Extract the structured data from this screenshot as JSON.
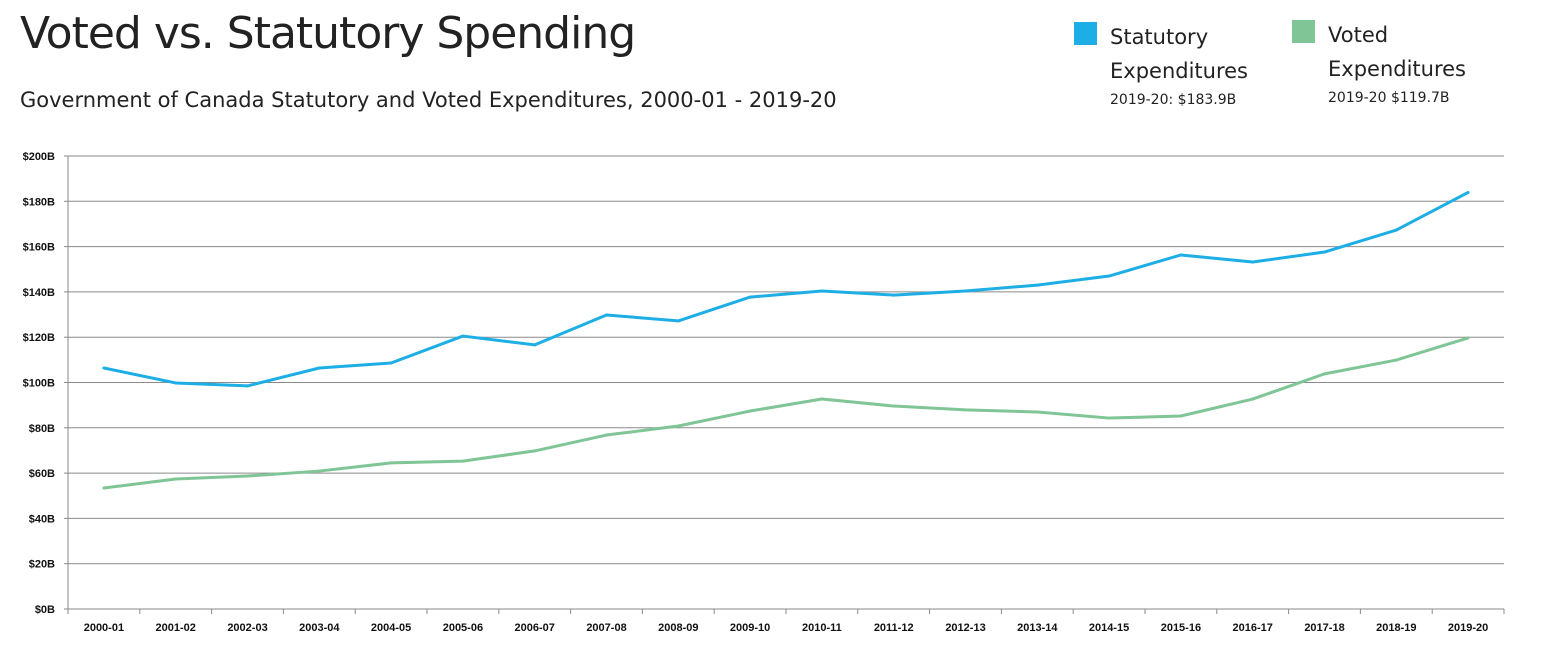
{
  "chart_data": {
    "type": "line",
    "title": "Voted vs. Statutory Spending",
    "subtitle": "Government of Canada Statutory and Voted Expenditures, 2000-01 - 2019-20",
    "xlabel": "",
    "ylabel": "",
    "ylim": [
      0,
      200
    ],
    "yticks": [
      0,
      20,
      40,
      60,
      80,
      100,
      120,
      140,
      160,
      180,
      200
    ],
    "ytick_labels": [
      "$0B",
      "$20B",
      "$40B",
      "$60B",
      "$80B",
      "$100B",
      "$120B",
      "$140B",
      "$160B",
      "$180B",
      "$200B"
    ],
    "grid": true,
    "legend_position": "top-right",
    "categories": [
      "2000-01",
      "2001-02",
      "2002-03",
      "2003-04",
      "2004-05",
      "2005-06",
      "2006-07",
      "2007-08",
      "2008-09",
      "2009-10",
      "2010-11",
      "2011-12",
      "2012-13",
      "2013-14",
      "2014-15",
      "2015-16",
      "2016-17",
      "2017-18",
      "2018-19",
      "2019-20"
    ],
    "series": [
      {
        "name": "Statutory Expenditures",
        "note": "2019-20: $183.9B",
        "color": "#1daee6",
        "values": [
          106.4,
          99.8,
          98.5,
          106.4,
          108.6,
          120.5,
          116.6,
          129.8,
          127.2,
          137.7,
          140.4,
          138.6,
          140.4,
          143.0,
          147.0,
          156.3,
          153.2,
          157.6,
          167.3,
          183.9
        ]
      },
      {
        "name": "Voted Expenditures",
        "note": "2019-20 $119.7B",
        "color": "#7fc595",
        "values": [
          53.4,
          57.4,
          58.7,
          60.9,
          64.5,
          65.3,
          69.8,
          76.8,
          80.8,
          87.4,
          92.7,
          89.6,
          87.9,
          87.0,
          84.3,
          85.2,
          92.7,
          103.8,
          109.9,
          119.7
        ]
      }
    ]
  }
}
